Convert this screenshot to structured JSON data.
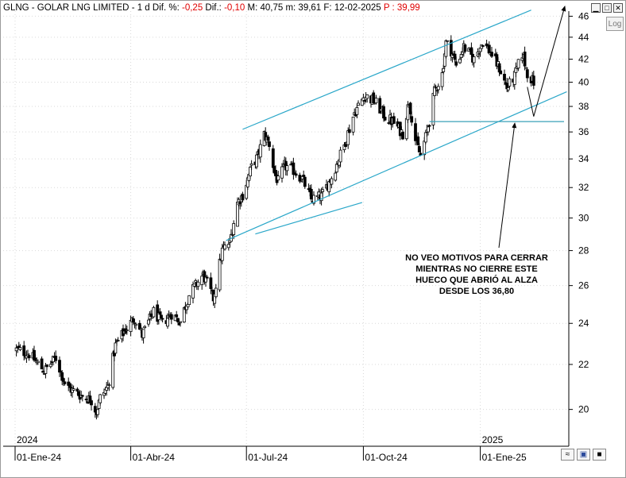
{
  "header": {
    "symbol": "GLNG - GOLAR LNG LIMITED",
    "timeframe": "1 d",
    "dif_pct_label": "Dif. %:",
    "dif_pct_value": "-0,25",
    "dif_label": "Dif.:",
    "dif_value": "-0,10",
    "max_label": "M: 40,75",
    "min_label": "m: 39,61",
    "date_label": "F: 12-02-2025",
    "price_label": "P : 39,99"
  },
  "window_controls": [
    "minimize-icon",
    "restore-icon",
    "close-icon"
  ],
  "log_button_label": "Log",
  "chart_data": {
    "type": "candlestick",
    "ylim": [
      18.5,
      46.5
    ],
    "y_ticks": [
      "20",
      "22",
      "24",
      "26",
      "28",
      "30",
      "32",
      "34",
      "36",
      "38",
      "40",
      "42",
      "44",
      "46"
    ],
    "x_ticks": [
      "01-Ene-24",
      "01-Abr-24",
      "01-Jul-24",
      "01-Oct-24",
      "01-Ene-25"
    ],
    "year_labels": [
      "2024",
      "2025"
    ],
    "colors": {
      "up": "#ffffff",
      "down": "#000000",
      "channel": "#2aa7c9",
      "gap_line": "#3aa0b8",
      "arrow": "#000000"
    },
    "annotation": [
      "NO VEO MOTIVOS PARA CERRAR",
      "MIENTRAS NO CIERRE ESTE",
      "HUECO QUE ABRIÓ AL ALZA",
      "DESDE LOS 36,80"
    ],
    "gap_level": 36.8,
    "channel_upper": {
      "from": [
        "2024-06-28",
        36.2
      ],
      "to": [
        "2025-02-10",
        46.6
      ]
    },
    "channel_lower": {
      "from": [
        "2024-06-15",
        28.6
      ],
      "to": [
        "2025-03-10",
        39.2
      ]
    },
    "channel_mid_segment": {
      "from": [
        "2024-07-08",
        29.0
      ],
      "to": [
        "2024-09-30",
        31.0
      ]
    },
    "waypoints": [
      [
        "2024-01-02",
        22.7
      ],
      [
        "2024-01-12",
        22.5
      ],
      [
        "2024-01-24",
        21.7
      ],
      [
        "2024-02-02",
        22.3
      ],
      [
        "2024-02-10",
        21.0
      ],
      [
        "2024-02-22",
        20.6
      ],
      [
        "2024-03-01",
        20.4
      ],
      [
        "2024-03-05",
        19.9
      ],
      [
        "2024-03-08",
        20.5
      ],
      [
        "2024-03-14",
        21.0
      ],
      [
        "2024-03-20",
        22.9
      ],
      [
        "2024-03-27",
        23.6
      ],
      [
        "2024-04-04",
        24.3
      ],
      [
        "2024-04-10",
        23.4
      ],
      [
        "2024-04-19",
        24.6
      ],
      [
        "2024-04-26",
        24.0
      ],
      [
        "2024-05-03",
        24.5
      ],
      [
        "2024-05-10",
        24.1
      ],
      [
        "2024-05-17",
        25.5
      ],
      [
        "2024-05-28",
        26.6
      ],
      [
        "2024-06-05",
        25.3
      ],
      [
        "2024-06-12",
        28.0
      ],
      [
        "2024-06-18",
        28.5
      ],
      [
        "2024-06-24",
        31.0
      ],
      [
        "2024-06-28",
        31.5
      ],
      [
        "2024-07-05",
        33.4
      ],
      [
        "2024-07-10",
        34.2
      ],
      [
        "2024-07-15",
        35.8
      ],
      [
        "2024-07-19",
        35.1
      ],
      [
        "2024-07-23",
        33.0
      ],
      [
        "2024-07-26",
        32.4
      ],
      [
        "2024-07-31",
        33.5
      ],
      [
        "2024-08-07",
        33.2
      ],
      [
        "2024-08-14",
        32.6
      ],
      [
        "2024-08-21",
        31.2
      ],
      [
        "2024-08-29",
        31.4
      ],
      [
        "2024-09-06",
        32.7
      ],
      [
        "2024-09-16",
        35.0
      ],
      [
        "2024-09-24",
        37.5
      ],
      [
        "2024-10-02",
        38.9
      ],
      [
        "2024-10-10",
        38.4
      ],
      [
        "2024-10-18",
        37.2
      ],
      [
        "2024-10-25",
        36.7
      ],
      [
        "2024-11-01",
        35.9
      ],
      [
        "2024-11-06",
        38.4
      ],
      [
        "2024-11-11",
        35.4
      ],
      [
        "2024-11-15",
        34.2
      ],
      [
        "2024-11-19",
        35.6
      ],
      [
        "2024-11-22",
        36.9
      ],
      [
        "2024-11-26",
        39.2
      ],
      [
        "2024-12-02",
        40.7
      ],
      [
        "2024-12-05",
        43.5
      ],
      [
        "2024-12-09",
        42.8
      ],
      [
        "2024-12-13",
        41.5
      ],
      [
        "2024-12-19",
        43.1
      ],
      [
        "2024-12-27",
        42.0
      ],
      [
        "2025-01-03",
        43.6
      ],
      [
        "2025-01-09",
        42.6
      ],
      [
        "2025-01-16",
        41.2
      ],
      [
        "2025-01-22",
        39.5
      ],
      [
        "2025-01-28",
        40.5
      ],
      [
        "2025-02-03",
        42.5
      ],
      [
        "2025-02-07",
        40.8
      ],
      [
        "2025-02-12",
        39.99
      ]
    ]
  }
}
